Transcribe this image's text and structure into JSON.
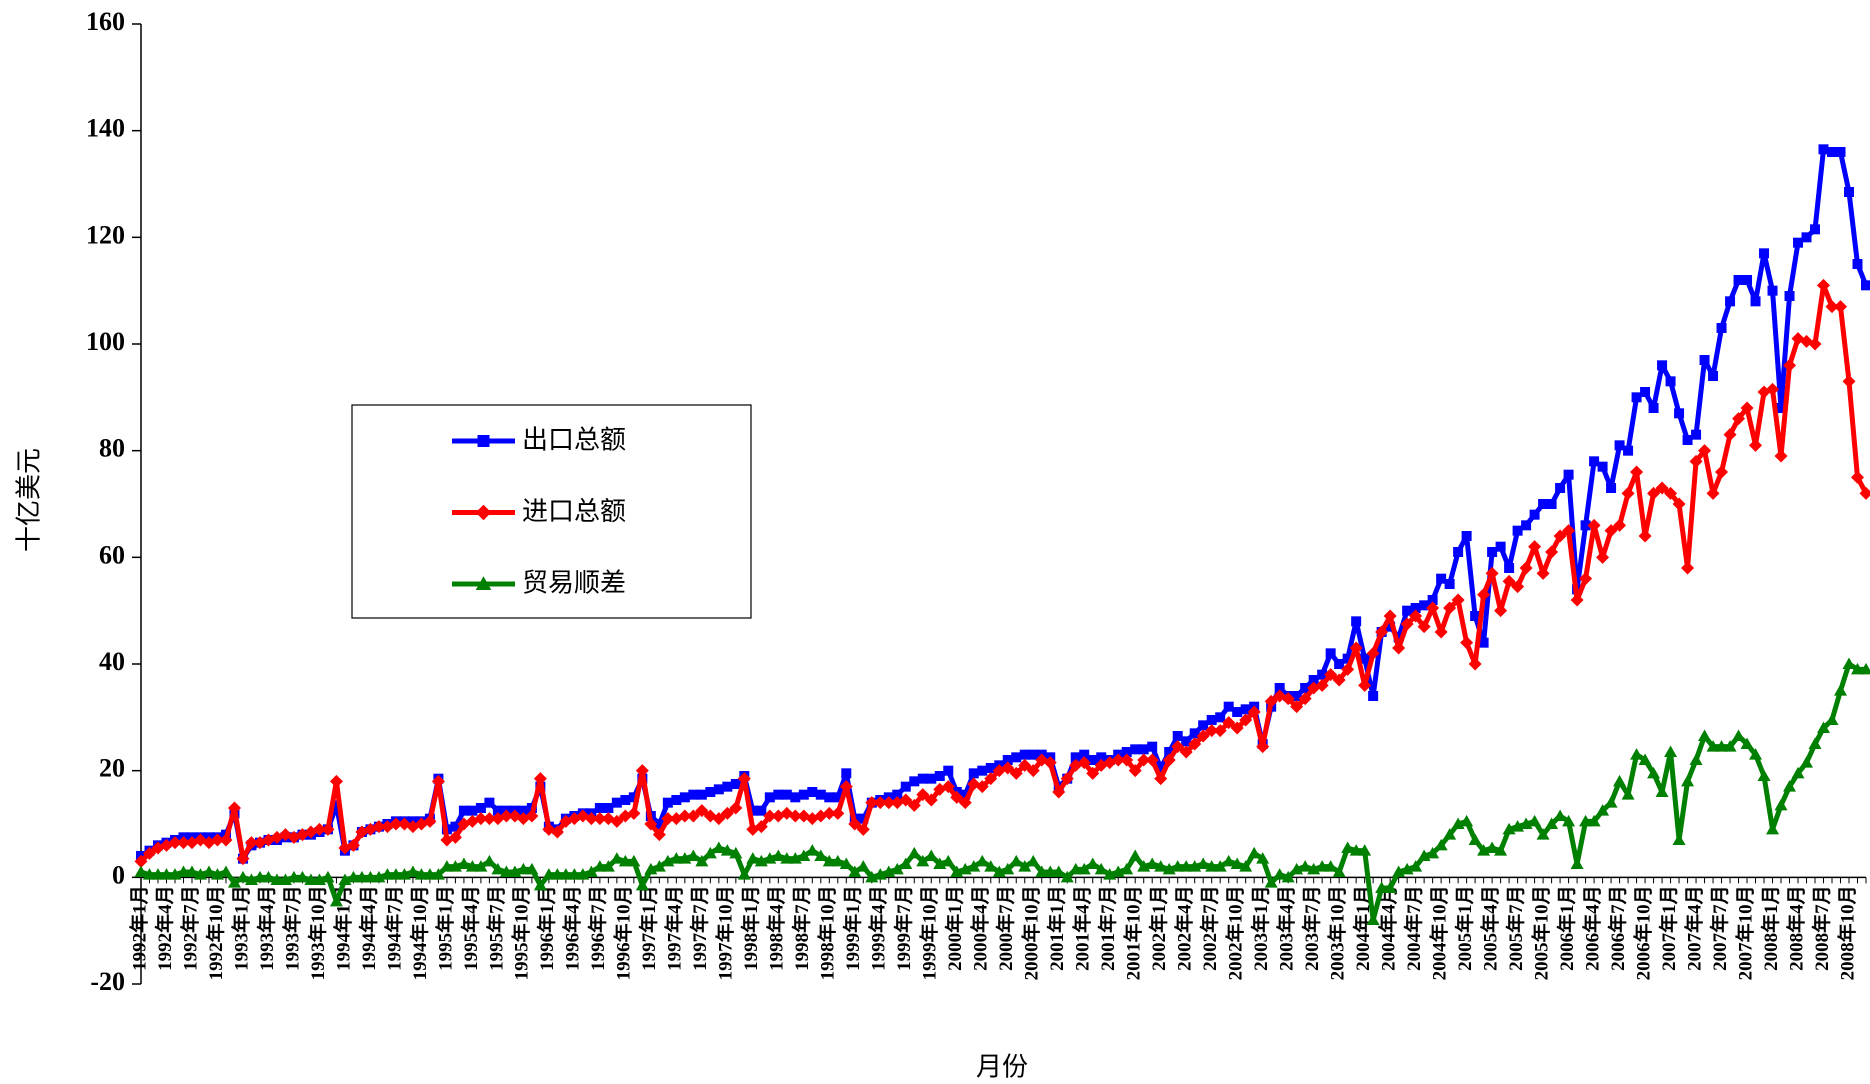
{
  "chart_data": {
    "type": "line",
    "x_label": "月份",
    "y_label": "十亿美元",
    "categories": [
      "1992年1月",
      null,
      null,
      "1992年4月",
      null,
      null,
      "1992年7月",
      null,
      null,
      "1992年10月",
      null,
      null,
      "1993年1月",
      null,
      null,
      "1993年4月",
      null,
      null,
      "1993年7月",
      null,
      null,
      "1993年10月",
      null,
      null,
      "1994年1月",
      null,
      null,
      "1994年4月",
      null,
      null,
      "1994年7月",
      null,
      null,
      "1994年10月",
      null,
      null,
      "1995年1月",
      null,
      null,
      "1995年4月",
      null,
      null,
      "1995年7月",
      null,
      null,
      "1995年10月",
      null,
      null,
      "1996年1月",
      null,
      null,
      "1996年4月",
      null,
      null,
      "1996年7月",
      null,
      null,
      "1996年10月",
      null,
      null,
      "1997年1月",
      null,
      null,
      "1997年4月",
      null,
      null,
      "1997年7月",
      null,
      null,
      "1997年10月",
      null,
      null,
      "1998年1月",
      null,
      null,
      "1998年4月",
      null,
      null,
      "1998年7月",
      null,
      null,
      "1998年10月",
      null,
      null,
      "1999年1月",
      null,
      null,
      "1999年4月",
      null,
      null,
      "1999年7月",
      null,
      null,
      "1999年10月",
      null,
      null,
      "2000年1月",
      null,
      null,
      "2000年4月",
      null,
      null,
      "2000年7月",
      null,
      null,
      "2000年10月",
      null,
      null,
      "2001年1月",
      null,
      null,
      "2001年4月",
      null,
      null,
      "2001年7月",
      null,
      null,
      "2001年10月",
      null,
      null,
      "2002年1月",
      null,
      null,
      "2002年4月",
      null,
      null,
      "2002年7月",
      null,
      null,
      "2002年10月",
      null,
      null,
      "2003年1月",
      null,
      null,
      "2003年4月",
      null,
      null,
      "2003年7月",
      null,
      null,
      "2003年10月",
      null,
      null,
      "2004年1月",
      null,
      null,
      "2004年4月",
      null,
      null,
      "2004年7月",
      null,
      null,
      "2004年10月",
      null,
      null,
      "2005年1月",
      null,
      null,
      "2005年4月",
      null,
      null,
      "2005年7月",
      null,
      null,
      "2005年10月",
      null,
      null,
      "2006年1月",
      null,
      null,
      "2006年4月",
      null,
      null,
      "2006年7月",
      null,
      null,
      "2006年10月",
      null,
      null,
      "2007年1月",
      null,
      null,
      "2007年4月",
      null,
      null,
      "2007年7月",
      null,
      null,
      "2007年10月",
      null,
      null,
      "2008年1月",
      null,
      null,
      "2008年4月",
      null,
      null,
      "2008年7月",
      null,
      null,
      "2008年10月",
      null,
      null
    ],
    "series": [
      {
        "name": "出口总额",
        "color": "#0000ff",
        "marker": "square",
        "values": [
          4,
          5,
          6,
          6.5,
          7,
          7.5,
          7.5,
          7.5,
          7.5,
          7.5,
          8,
          12,
          3.5,
          6,
          6.5,
          7,
          7,
          7.5,
          7.5,
          8,
          8,
          8.5,
          9,
          13.5,
          5,
          6,
          8.5,
          9,
          9.5,
          10,
          10.5,
          10.5,
          10.5,
          10.5,
          11,
          18.5,
          9,
          9.5,
          12.5,
          12.5,
          13,
          14,
          12.5,
          12.5,
          12.5,
          12.5,
          13,
          17,
          9.5,
          9,
          11,
          11.5,
          12,
          12,
          13,
          13,
          14,
          14.5,
          15,
          18.5,
          11.5,
          10,
          14,
          14.5,
          15,
          15.5,
          15.5,
          16,
          16.5,
          17,
          17.5,
          19,
          12.5,
          12.5,
          15,
          15.5,
          15.5,
          15,
          15.5,
          16,
          15.5,
          15,
          15,
          19.5,
          11,
          11,
          14,
          14.5,
          15,
          15.5,
          17,
          18,
          18.5,
          18.5,
          19,
          20,
          16,
          15.5,
          19.5,
          20,
          20.5,
          21,
          22,
          22.5,
          23,
          23,
          23,
          22.5,
          17,
          18.5,
          22.5,
          23,
          22,
          22.5,
          22,
          23,
          23.5,
          24,
          24,
          24.5,
          20.5,
          23.5,
          26.5,
          25.5,
          27,
          28.5,
          29.5,
          30,
          32,
          31,
          31.5,
          32,
          25,
          32,
          35.5,
          34,
          34,
          35.5,
          37,
          38,
          42,
          40,
          41,
          48,
          41,
          34,
          46,
          47,
          45,
          50,
          50.5,
          51,
          52,
          56,
          55,
          61,
          64,
          49,
          44,
          61,
          62,
          58,
          65,
          66,
          68,
          70,
          70,
          73,
          75.5,
          54,
          66,
          78,
          77,
          73,
          81,
          80,
          90,
          91,
          88,
          96,
          93,
          87,
          82,
          83,
          97,
          94,
          103,
          108,
          112,
          112,
          108,
          117,
          110,
          88,
          109,
          119,
          120,
          121.5,
          136.5,
          136,
          136,
          128.5,
          115,
          111
        ]
      },
      {
        "name": "进口总额",
        "color": "#ff0000",
        "marker": "diamond",
        "values": [
          3,
          4.5,
          5.5,
          6,
          6.5,
          6.5,
          6.5,
          7,
          6.5,
          7,
          7,
          13,
          3.5,
          6.5,
          6.5,
          7,
          7.5,
          8,
          7.5,
          8,
          8.5,
          9,
          9,
          18,
          5.5,
          6,
          8.5,
          9,
          9.5,
          9.5,
          10,
          10,
          9.5,
          10,
          10.5,
          18,
          7,
          7.5,
          10,
          10.5,
          11,
          11,
          11,
          11.5,
          11.5,
          11,
          11.5,
          18.5,
          9,
          8.5,
          10.5,
          11,
          11.5,
          11,
          11,
          11,
          10.5,
          11.5,
          12,
          20,
          10,
          8,
          11,
          11,
          11.5,
          11.5,
          12.5,
          11.5,
          11,
          12,
          13,
          18.5,
          9,
          9.5,
          11.5,
          11.5,
          12,
          11.5,
          11.5,
          11,
          11.5,
          12,
          12,
          17,
          10,
          9,
          14,
          14,
          14,
          14,
          14.5,
          13.5,
          15.5,
          14.5,
          16.5,
          17,
          15,
          14,
          17.5,
          17,
          18.5,
          20,
          20.5,
          19.5,
          21,
          20,
          22,
          21.5,
          16,
          18.5,
          21,
          21.5,
          19.5,
          21,
          21.5,
          22,
          22,
          20,
          22,
          22,
          18.5,
          22,
          24.5,
          23.5,
          25,
          26.5,
          27.5,
          27.5,
          29,
          28,
          29.5,
          31,
          24.5,
          33,
          34,
          33.5,
          32,
          33.5,
          35.5,
          36,
          38,
          37,
          39,
          43,
          36,
          42,
          46,
          49,
          43,
          47.5,
          49,
          47,
          50.5,
          46,
          50.5,
          52,
          44,
          40,
          53,
          57,
          50,
          55.5,
          54.5,
          58,
          62,
          57,
          61,
          64,
          65,
          52,
          56,
          66,
          60,
          65,
          66,
          72,
          76,
          64,
          72,
          73,
          72,
          70,
          58,
          78,
          80,
          72,
          76,
          83,
          86,
          88,
          81,
          91,
          91.5,
          79,
          96,
          101,
          100.5,
          100,
          111,
          107,
          107,
          93,
          75,
          72
        ]
      },
      {
        "name": "贸易顺差",
        "color": "#008000",
        "marker": "triangle",
        "values": [
          1,
          0.5,
          0.5,
          0.5,
          0.5,
          1,
          1,
          0.5,
          1,
          0.5,
          1,
          -1,
          0,
          -0.5,
          0,
          0,
          -0.5,
          -0.5,
          0,
          0,
          -0.5,
          -0.5,
          0,
          -4.5,
          -0.5,
          0,
          0,
          0,
          0,
          0.5,
          0.5,
          0.5,
          1,
          0.5,
          0.5,
          0.5,
          2,
          2,
          2.5,
          2,
          2,
          3,
          1.5,
          1,
          1,
          1.5,
          1.5,
          -1.5,
          0.5,
          0.5,
          0.5,
          0.5,
          0.5,
          1,
          2,
          2,
          3.5,
          3,
          3,
          -1.5,
          1.5,
          2,
          3,
          3.5,
          3.5,
          4,
          3,
          4.5,
          5.5,
          5,
          4.5,
          0.5,
          3.5,
          3,
          3.5,
          4,
          3.5,
          3.5,
          4,
          5,
          4,
          3,
          3,
          2.5,
          1,
          2,
          0,
          0.5,
          1,
          1.5,
          2.5,
          4.5,
          3,
          4,
          2.5,
          3,
          1,
          1.5,
          2,
          3,
          2,
          1,
          1.5,
          3,
          2,
          3,
          1,
          1,
          1,
          0,
          1.5,
          1.5,
          2.5,
          1.5,
          0.5,
          1,
          1.5,
          4,
          2,
          2.5,
          2,
          1.5,
          2,
          2,
          2,
          2.5,
          2,
          2,
          3,
          2.5,
          2,
          4.5,
          3.5,
          -1,
          0.5,
          0,
          1.5,
          2,
          1.5,
          2,
          2,
          1,
          5.5,
          5,
          5,
          -8,
          -2,
          -2,
          1,
          1.5,
          2,
          4,
          4.5,
          6,
          8,
          10,
          10.5,
          7,
          5,
          5.5,
          5,
          9,
          9.5,
          10,
          10.5,
          8,
          10,
          11.5,
          10.5,
          2.5,
          10.5,
          10.5,
          12.5,
          14,
          18,
          15.5,
          23,
          22,
          19.5,
          16,
          23.5,
          7,
          18,
          22,
          26.5,
          24.5,
          24.5,
          24.5,
          26.5,
          25,
          23,
          19,
          9,
          13.5,
          17,
          19.5,
          21.5,
          25,
          28,
          29.5,
          35,
          40,
          39,
          39
        ]
      }
    ],
    "ylim": [
      -20,
      160
    ],
    "yticks": [
      -20,
      0,
      20,
      40,
      60,
      80,
      100,
      120,
      140,
      160
    ],
    "grid": false
  }
}
